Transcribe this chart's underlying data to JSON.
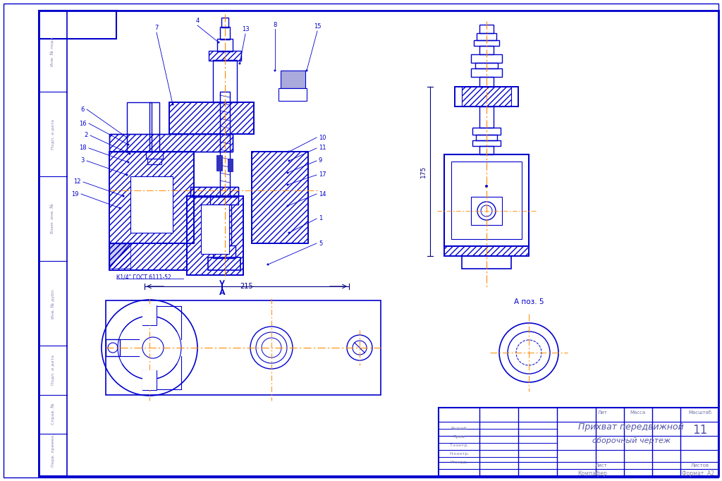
{
  "bg_color": "#ffffff",
  "border_color": "#0000cc",
  "line_color": "#0000cc",
  "dim_color": "#000080",
  "center_line_color": "#ff8800",
  "title_block": {
    "title_line1": "Прихват передвижной",
    "title_line2": "сборочный чертеж",
    "sheet_num": "11",
    "format_text": "Формат  А2",
    "stamp_text": "Компафер"
  },
  "dim_215": "215",
  "dim_175": "175",
  "label_A": "А",
  "label_A_pos5": "А поз. 5",
  "pipe_label": "К1/4\" ГОСТ 6111-52",
  "row_labels": [
    "Разраб.",
    "Пров.",
    "Т.контр.",
    "Н.контр.",
    "Утверд."
  ],
  "stamp_rows": [
    "Инв. № подл.",
    "Подп. и дата",
    "Взам. инв. №",
    "Инв. № дубл.",
    "Подп. и дата",
    "Справ. №",
    "Перв. примен."
  ]
}
